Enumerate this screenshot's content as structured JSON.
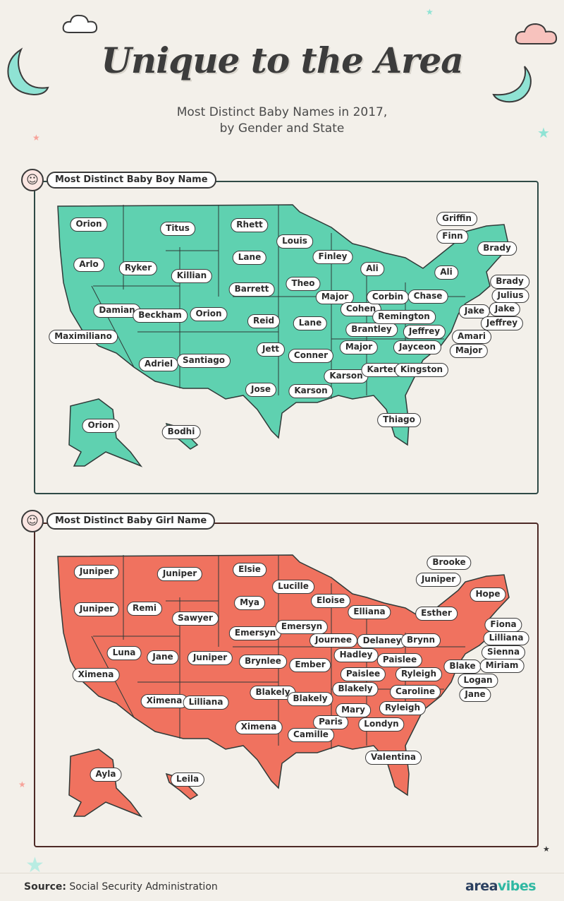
{
  "title": "Unique to the Area",
  "subtitle_line1": "Most Distinct Baby Names in 2017,",
  "subtitle_line2": "by Gender and State",
  "boy_section": {
    "label": "Most Distinct Baby Boy Name",
    "fill_color": "#5fd1b0",
    "names": [
      [
        "WA",
        "Orion",
        126,
        318
      ],
      [
        "OR",
        "Arlo",
        126,
        375
      ],
      [
        "CA",
        "Maximiliano",
        118,
        477
      ],
      [
        "NV",
        "Damian",
        166,
        440
      ],
      [
        "ID",
        "Ryker",
        196,
        380
      ],
      [
        "MT",
        "Titus",
        252,
        324
      ],
      [
        "WY",
        "Killian",
        272,
        391
      ],
      [
        "UT",
        "Beckham",
        227,
        447
      ],
      [
        "CO",
        "Orion",
        296,
        445
      ],
      [
        "AZ",
        "Adriel",
        225,
        516
      ],
      [
        "NM",
        "Santiago",
        289,
        511
      ],
      [
        "ND",
        "Rhett",
        354,
        319
      ],
      [
        "SD",
        "Lane",
        354,
        365
      ],
      [
        "NE",
        "Barrett",
        357,
        410
      ],
      [
        "KS",
        "Reid",
        374,
        455
      ],
      [
        "OK",
        "Jett",
        384,
        495
      ],
      [
        "TX",
        "Jose",
        370,
        552
      ],
      [
        "MN",
        "Louis",
        418,
        342
      ],
      [
        "IA",
        "Theo",
        430,
        402
      ],
      [
        "MO",
        "Lane",
        440,
        458
      ],
      [
        "AR",
        "Conner",
        441,
        504
      ],
      [
        "LA",
        "Karson",
        441,
        554
      ],
      [
        "WI",
        "Finley",
        472,
        364
      ],
      [
        "IL",
        "Major",
        475,
        421
      ],
      [
        "MI",
        "Ali",
        528,
        381
      ],
      [
        "IN",
        "Cohen",
        512,
        438
      ],
      [
        "OH",
        "Corbin",
        550,
        421
      ],
      [
        "KY",
        "Brantley",
        527,
        467
      ],
      [
        "TN",
        "Major",
        509,
        492
      ],
      [
        "MS",
        "Karson",
        491,
        533
      ],
      [
        "AL",
        "Karter",
        542,
        524
      ],
      [
        "GA",
        "Kingston",
        598,
        524
      ],
      [
        "FL",
        "Thiago",
        566,
        595
      ],
      [
        "SC",
        "Jayceon",
        592,
        492
      ],
      [
        "NC",
        "Jeffrey",
        602,
        470
      ],
      [
        "WV",
        "Remington",
        573,
        449
      ],
      [
        "PA",
        "Chase",
        607,
        420
      ],
      [
        "NY",
        "Ali",
        633,
        386
      ],
      [
        "VA",
        "Jake",
        673,
        441
      ],
      [
        "MD",
        "Jeffrey",
        712,
        458
      ],
      [
        "DE",
        "Amari",
        669,
        477
      ],
      [
        "DC",
        "Major",
        665,
        497
      ],
      [
        "NJ",
        "Jake",
        716,
        438
      ],
      [
        "CT",
        "Julius",
        724,
        419
      ],
      [
        "RI",
        "Brady",
        723,
        399
      ],
      [
        "MA",
        "Brady",
        705,
        352
      ],
      [
        "VT",
        "Griffin",
        648,
        310
      ],
      [
        "NH",
        "Finn",
        642,
        335
      ],
      [
        "AK",
        "Orion",
        143,
        603
      ],
      [
        "HI",
        "Bodhi",
        257,
        612
      ]
    ]
  },
  "girl_section": {
    "label": "Most Distinct Baby Girl Name",
    "fill_color": "#f0725f",
    "names": [
      [
        "WA",
        "Juniper",
        137,
        810
      ],
      [
        "OR",
        "Juniper",
        137,
        863
      ],
      [
        "CA",
        "Ximena",
        136,
        956
      ],
      [
        "NV",
        "Luna",
        176,
        925
      ],
      [
        "ID",
        "Remi",
        205,
        862
      ],
      [
        "MT",
        "Juniper",
        255,
        813
      ],
      [
        "WY",
        "Sawyer",
        277,
        876
      ],
      [
        "UT",
        "Jane",
        231,
        931
      ],
      [
        "CO",
        "Juniper",
        298,
        932
      ],
      [
        "AZ",
        "Ximena",
        233,
        993
      ],
      [
        "NM",
        "Lilliana",
        292,
        995
      ],
      [
        "ND",
        "Elsie",
        354,
        807
      ],
      [
        "SD",
        "Mya",
        354,
        854
      ],
      [
        "NE",
        "Emersyn",
        362,
        897
      ],
      [
        "KS",
        "Brynlee",
        373,
        937
      ],
      [
        "OK",
        "Blakely",
        387,
        981
      ],
      [
        "TX",
        "Ximena",
        367,
        1030
      ],
      [
        "MN",
        "Lucille",
        416,
        831
      ],
      [
        "IA",
        "Emersyn",
        428,
        888
      ],
      [
        "MO",
        "Ember",
        440,
        942
      ],
      [
        "AR",
        "Blakely",
        440,
        990
      ],
      [
        "LA",
        "Camille",
        441,
        1041
      ],
      [
        "WI",
        "Eloise",
        469,
        851
      ],
      [
        "IL",
        "Journee",
        473,
        907
      ],
      [
        "MI",
        "Elliana",
        524,
        867
      ],
      [
        "IN",
        "Hadley",
        505,
        928
      ],
      [
        "OH",
        "Delaney",
        542,
        908
      ],
      [
        "KY",
        "Paislee",
        515,
        955
      ],
      [
        "TN",
        "Blakely",
        504,
        976
      ],
      [
        "MS",
        "Paris",
        469,
        1023
      ],
      [
        "AL",
        "Mary",
        501,
        1006
      ],
      [
        "GA",
        "Londyn",
        541,
        1026
      ],
      [
        "FL",
        "Valentina",
        558,
        1073
      ],
      [
        "SC",
        "Ryleigh",
        571,
        1003
      ],
      [
        "NC",
        "Caroline",
        589,
        980
      ],
      [
        "WV",
        "Paislee",
        567,
        935
      ],
      [
        "VA",
        "Ryleigh",
        594,
        955
      ],
      [
        "PA",
        "Brynn",
        597,
        907
      ],
      [
        "NY",
        "Esther",
        619,
        869
      ],
      [
        "MD",
        "Blake",
        656,
        944
      ],
      [
        "DE",
        "Logan",
        678,
        964
      ],
      [
        "DC",
        "Jane",
        674,
        984
      ],
      [
        "NJ",
        "Miriam",
        712,
        943
      ],
      [
        "CT",
        "Sienna",
        714,
        924
      ],
      [
        "RI",
        "Lilliana",
        718,
        904
      ],
      [
        "MA",
        "Fiona",
        714,
        885
      ],
      [
        "ME",
        "Hope",
        692,
        842
      ],
      [
        "VT",
        "Brooke",
        637,
        797
      ],
      [
        "NH",
        "Juniper",
        622,
        821
      ],
      [
        "AK",
        "Ayla",
        150,
        1097
      ],
      [
        "HI",
        "Leila",
        266,
        1104
      ]
    ]
  },
  "source_label": "Source:",
  "source_text": "Social Security Administration",
  "logo_part1": "area",
  "logo_part2": "vibes"
}
